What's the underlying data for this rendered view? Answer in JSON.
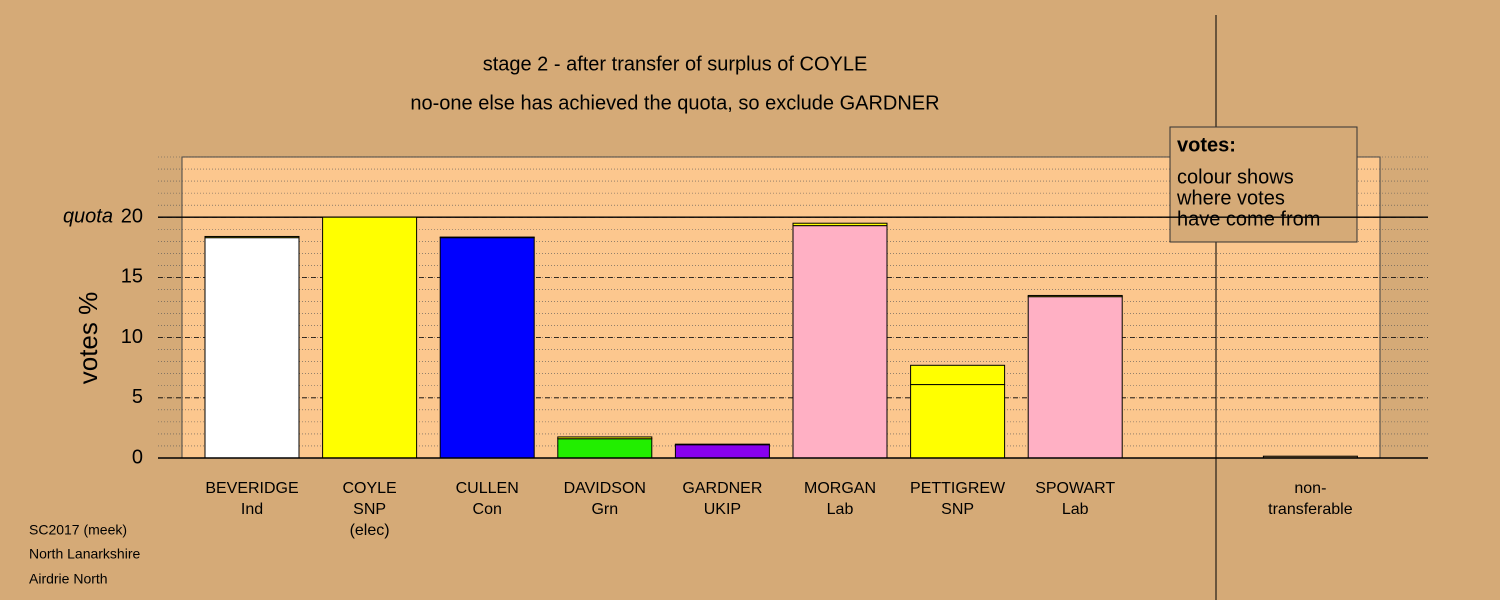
{
  "chart_data": {
    "type": "bar",
    "stacked": true,
    "title": "stage 2 - after transfer of surplus of COYLE",
    "subtitle": "no-one else has achieved the quota, so exclude GARDNER",
    "y_label": "votes %",
    "categories": [
      [
        "BEVERIDGE",
        "Ind"
      ],
      [
        "COYLE",
        "SNP",
        "(elec)"
      ],
      [
        "CULLEN",
        "Con"
      ],
      [
        "DAVIDSON",
        "Grn"
      ],
      [
        "GARDNER",
        "UKIP"
      ],
      [
        "MORGAN",
        "Lab"
      ],
      [
        "PETTIGREW",
        "SNP"
      ],
      [
        "SPOWART",
        "Lab"
      ],
      null,
      [
        "non-",
        "transferable"
      ]
    ],
    "series": [
      {
        "values": [
          18.3,
          20,
          18.3,
          1.6,
          1.1,
          19.3,
          6.1,
          13.4,
          null,
          null
        ],
        "colors": [
          "#ffffff",
          "#ffff00",
          "#0000ff",
          "#22ee00",
          "#8800ee",
          "#ffb0c4",
          "#ffff00",
          "#ffb0c4",
          null,
          null
        ]
      },
      {
        "values": [
          0.1,
          null,
          0.05,
          0.15,
          0.05,
          0.2,
          1.6,
          0.1,
          null,
          0.15
        ],
        "colors": [
          "#ffff00",
          null,
          "#ffff00",
          "#ffff00",
          "#ffff00",
          "#ffff00",
          "#ffff00",
          "#ffff00",
          null,
          "#b08850"
        ]
      }
    ],
    "ylim": [
      0,
      25
    ],
    "yticks": [
      0,
      5,
      10,
      15,
      20
    ],
    "quota": {
      "value": 20,
      "label": "quota"
    },
    "legend": {
      "title": "votes:",
      "lines": [
        "colour shows",
        "where votes",
        "have come from"
      ]
    },
    "footer": [
      "SC2017 (meek)",
      "North Lanarkshire",
      "Airdrie North"
    ]
  }
}
